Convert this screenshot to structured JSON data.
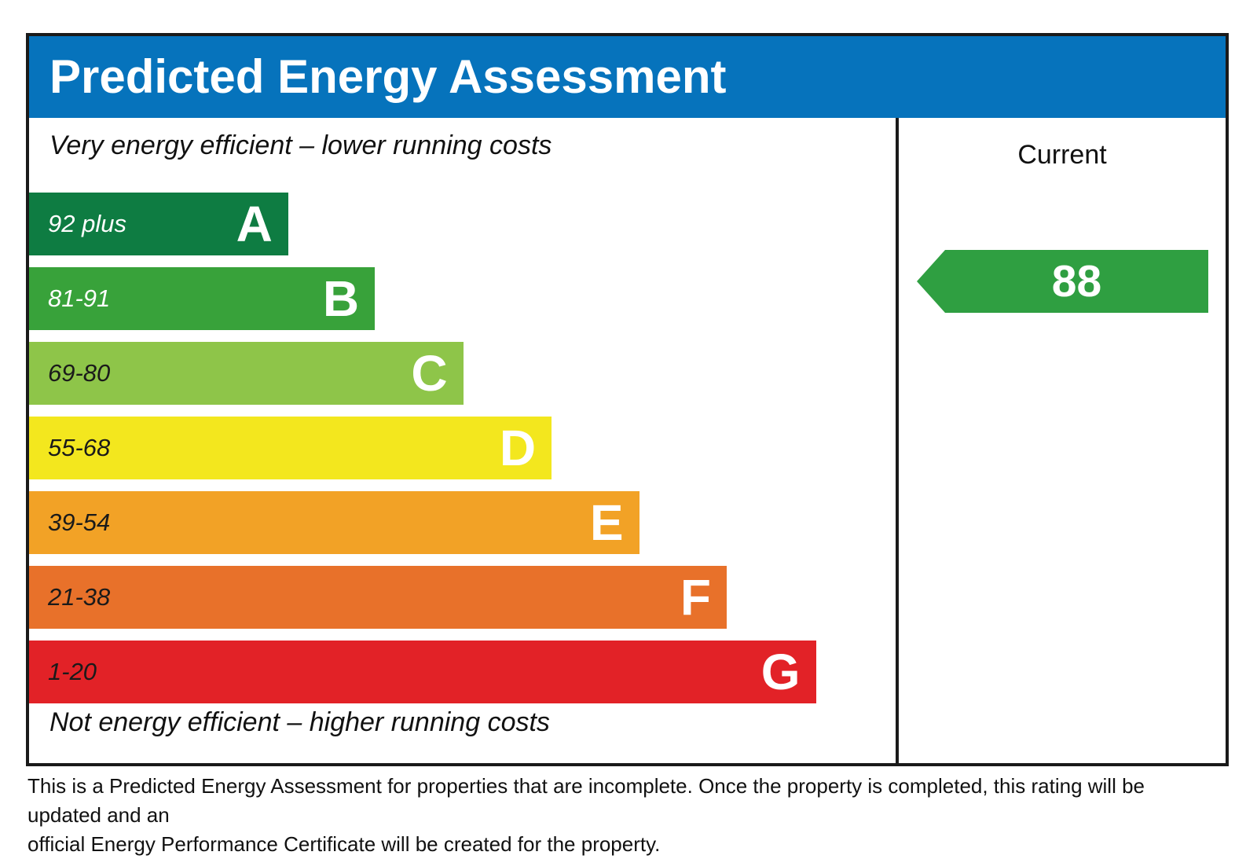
{
  "title": "Predicted Energy Assessment",
  "colors": {
    "header_bg": "#0673bc",
    "border": "#1a1a1a"
  },
  "chart_data": {
    "type": "bar",
    "title": "Predicted Energy Assessment",
    "top_annotation": "Very energy efficient – lower running costs",
    "bottom_annotation": "Not energy efficient – higher running costs",
    "bands": [
      {
        "letter": "A",
        "range_label": "92 plus",
        "range_min": 92,
        "range_max": 100,
        "color": "#0e7c42",
        "text_color": "#ffffff",
        "width_pct": 29.9
      },
      {
        "letter": "B",
        "range_label": "81-91",
        "range_min": 81,
        "range_max": 91,
        "color": "#38a23a",
        "text_color": "#ffffff",
        "width_pct": 39.9
      },
      {
        "letter": "C",
        "range_label": "69-80",
        "range_min": 69,
        "range_max": 80,
        "color": "#8ec549",
        "text_color": "#1a1a1a",
        "width_pct": 50.1
      },
      {
        "letter": "D",
        "range_label": "55-68",
        "range_min": 55,
        "range_max": 68,
        "color": "#f3e71e",
        "text_color": "#1a1a1a",
        "width_pct": 60.3
      },
      {
        "letter": "E",
        "range_label": "39-54",
        "range_min": 39,
        "range_max": 54,
        "color": "#f2a226",
        "text_color": "#1a1a1a",
        "width_pct": 70.4
      },
      {
        "letter": "F",
        "range_label": "21-38",
        "range_min": 21,
        "range_max": 38,
        "color": "#e8712a",
        "text_color": "#1a1a1a",
        "width_pct": 80.5
      },
      {
        "letter": "G",
        "range_label": "1-20",
        "range_min": 1,
        "range_max": 20,
        "color": "#e22227",
        "text_color": "#1a1a1a",
        "width_pct": 90.8
      }
    ],
    "current": {
      "header": "Current",
      "value": 88,
      "band": "B",
      "arrow_color": "#2f9f41"
    }
  },
  "footer": {
    "line1": "This is a Predicted Energy Assessment for properties that are incomplete. Once the property is completed, this rating will be updated and an",
    "line2": "official Energy Performance Certificate will be created for the property."
  }
}
